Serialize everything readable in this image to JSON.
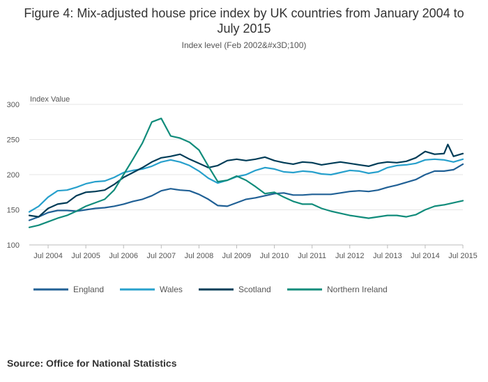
{
  "title": "Figure 4: Mix-adjusted house price index by UK countries from January 2004 to July 2015",
  "subtitle": "Index level (Feb 2002&#x3D;100)",
  "source": "Source: Office for National Statistics",
  "chart_data": {
    "type": "line",
    "ylabel": "Index Value",
    "ylim": [
      100,
      300
    ],
    "yticks": [
      100,
      150,
      200,
      250,
      300
    ],
    "xlim": [
      2004.0,
      2015.5
    ],
    "xticks": [
      {
        "label": "Jul 2004",
        "value": 2004.5
      },
      {
        "label": "Jul 2005",
        "value": 2005.5
      },
      {
        "label": "Jul 2006",
        "value": 2006.5
      },
      {
        "label": "Jul 2007",
        "value": 2007.5
      },
      {
        "label": "Jul 2008",
        "value": 2008.5
      },
      {
        "label": "Jul 2009",
        "value": 2009.5
      },
      {
        "label": "Jul 2010",
        "value": 2010.5
      },
      {
        "label": "Jul 2011",
        "value": 2011.5
      },
      {
        "label": "Jul 2012",
        "value": 2012.5
      },
      {
        "label": "Jul 2013",
        "value": 2013.5
      },
      {
        "label": "Jul 2014",
        "value": 2014.5
      },
      {
        "label": "Jul 2015",
        "value": 2015.5
      }
    ],
    "grid": true,
    "legend": "bottom",
    "series": [
      {
        "name": "England",
        "color": "#206095",
        "x": [
          2004.0,
          2004.25,
          2004.5,
          2004.75,
          2005.0,
          2005.25,
          2005.5,
          2005.75,
          2006.0,
          2006.25,
          2006.5,
          2006.75,
          2007.0,
          2007.25,
          2007.5,
          2007.75,
          2008.0,
          2008.25,
          2008.5,
          2008.75,
          2009.0,
          2009.25,
          2009.5,
          2009.75,
          2010.0,
          2010.25,
          2010.5,
          2010.75,
          2011.0,
          2011.25,
          2011.5,
          2011.75,
          2012.0,
          2012.25,
          2012.5,
          2012.75,
          2013.0,
          2013.25,
          2013.5,
          2013.75,
          2014.0,
          2014.25,
          2014.5,
          2014.75,
          2015.0,
          2015.25,
          2015.5
        ],
        "values": [
          135,
          140,
          146,
          149,
          149,
          148,
          150,
          152,
          153,
          155,
          158,
          162,
          165,
          170,
          177,
          180,
          178,
          177,
          172,
          165,
          156,
          155,
          160,
          165,
          167,
          170,
          173,
          174,
          171,
          171,
          172,
          172,
          172,
          174,
          176,
          177,
          176,
          178,
          182,
          185,
          189,
          193,
          200,
          205,
          205,
          207,
          215
        ]
      },
      {
        "name": "Wales",
        "color": "#27a0cc",
        "x": [
          2004.0,
          2004.25,
          2004.5,
          2004.75,
          2005.0,
          2005.25,
          2005.5,
          2005.75,
          2006.0,
          2006.25,
          2006.5,
          2006.75,
          2007.0,
          2007.25,
          2007.5,
          2007.75,
          2008.0,
          2008.25,
          2008.5,
          2008.75,
          2009.0,
          2009.25,
          2009.5,
          2009.75,
          2010.0,
          2010.25,
          2010.5,
          2010.75,
          2011.0,
          2011.25,
          2011.5,
          2011.75,
          2012.0,
          2012.25,
          2012.5,
          2012.75,
          2013.0,
          2013.25,
          2013.5,
          2013.75,
          2014.0,
          2014.25,
          2014.5,
          2014.75,
          2015.0,
          2015.25,
          2015.5
        ],
        "values": [
          147,
          155,
          168,
          177,
          178,
          182,
          187,
          190,
          191,
          196,
          203,
          206,
          208,
          212,
          218,
          221,
          218,
          213,
          205,
          195,
          188,
          192,
          197,
          200,
          206,
          210,
          208,
          204,
          203,
          205,
          204,
          201,
          200,
          203,
          206,
          205,
          202,
          204,
          210,
          213,
          214,
          216,
          221,
          222,
          221,
          218,
          222
        ]
      },
      {
        "name": "Scotland",
        "color": "#003c57",
        "x": [
          2004.0,
          2004.25,
          2004.5,
          2004.75,
          2005.0,
          2005.25,
          2005.5,
          2005.75,
          2006.0,
          2006.25,
          2006.5,
          2006.75,
          2007.0,
          2007.25,
          2007.5,
          2007.75,
          2008.0,
          2008.25,
          2008.5,
          2008.75,
          2009.0,
          2009.25,
          2009.5,
          2009.75,
          2010.0,
          2010.25,
          2010.5,
          2010.75,
          2011.0,
          2011.25,
          2011.5,
          2011.75,
          2012.0,
          2012.25,
          2012.5,
          2012.75,
          2013.0,
          2013.25,
          2013.5,
          2013.75,
          2014.0,
          2014.25,
          2014.5,
          2014.75,
          2015.0,
          2015.1,
          2015.25,
          2015.5
        ],
        "values": [
          142,
          140,
          152,
          158,
          160,
          170,
          175,
          176,
          178,
          186,
          196,
          203,
          210,
          218,
          224,
          226,
          229,
          222,
          216,
          210,
          213,
          220,
          222,
          220,
          222,
          225,
          220,
          217,
          215,
          218,
          217,
          214,
          216,
          218,
          216,
          214,
          212,
          216,
          218,
          217,
          219,
          224,
          233,
          229,
          230,
          243,
          226,
          230
        ]
      },
      {
        "name": "Northern Ireland",
        "color": "#118c7b",
        "x": [
          2004.0,
          2004.25,
          2004.5,
          2004.75,
          2005.0,
          2005.25,
          2005.5,
          2005.75,
          2006.0,
          2006.25,
          2006.5,
          2006.75,
          2007.0,
          2007.25,
          2007.5,
          2007.75,
          2008.0,
          2008.25,
          2008.5,
          2008.75,
          2009.0,
          2009.25,
          2009.5,
          2009.75,
          2010.0,
          2010.25,
          2010.5,
          2010.75,
          2011.0,
          2011.25,
          2011.5,
          2011.75,
          2012.0,
          2012.25,
          2012.5,
          2012.75,
          2013.0,
          2013.25,
          2013.5,
          2013.75,
          2014.0,
          2014.25,
          2014.5,
          2014.75,
          2015.0,
          2015.25,
          2015.5
        ],
        "values": [
          125,
          128,
          133,
          138,
          142,
          148,
          155,
          160,
          165,
          178,
          200,
          222,
          245,
          275,
          280,
          255,
          252,
          246,
          235,
          212,
          190,
          192,
          198,
          192,
          183,
          173,
          175,
          168,
          162,
          158,
          158,
          152,
          148,
          145,
          142,
          140,
          138,
          140,
          142,
          142,
          140,
          143,
          150,
          155,
          157,
          160,
          163
        ]
      }
    ]
  }
}
